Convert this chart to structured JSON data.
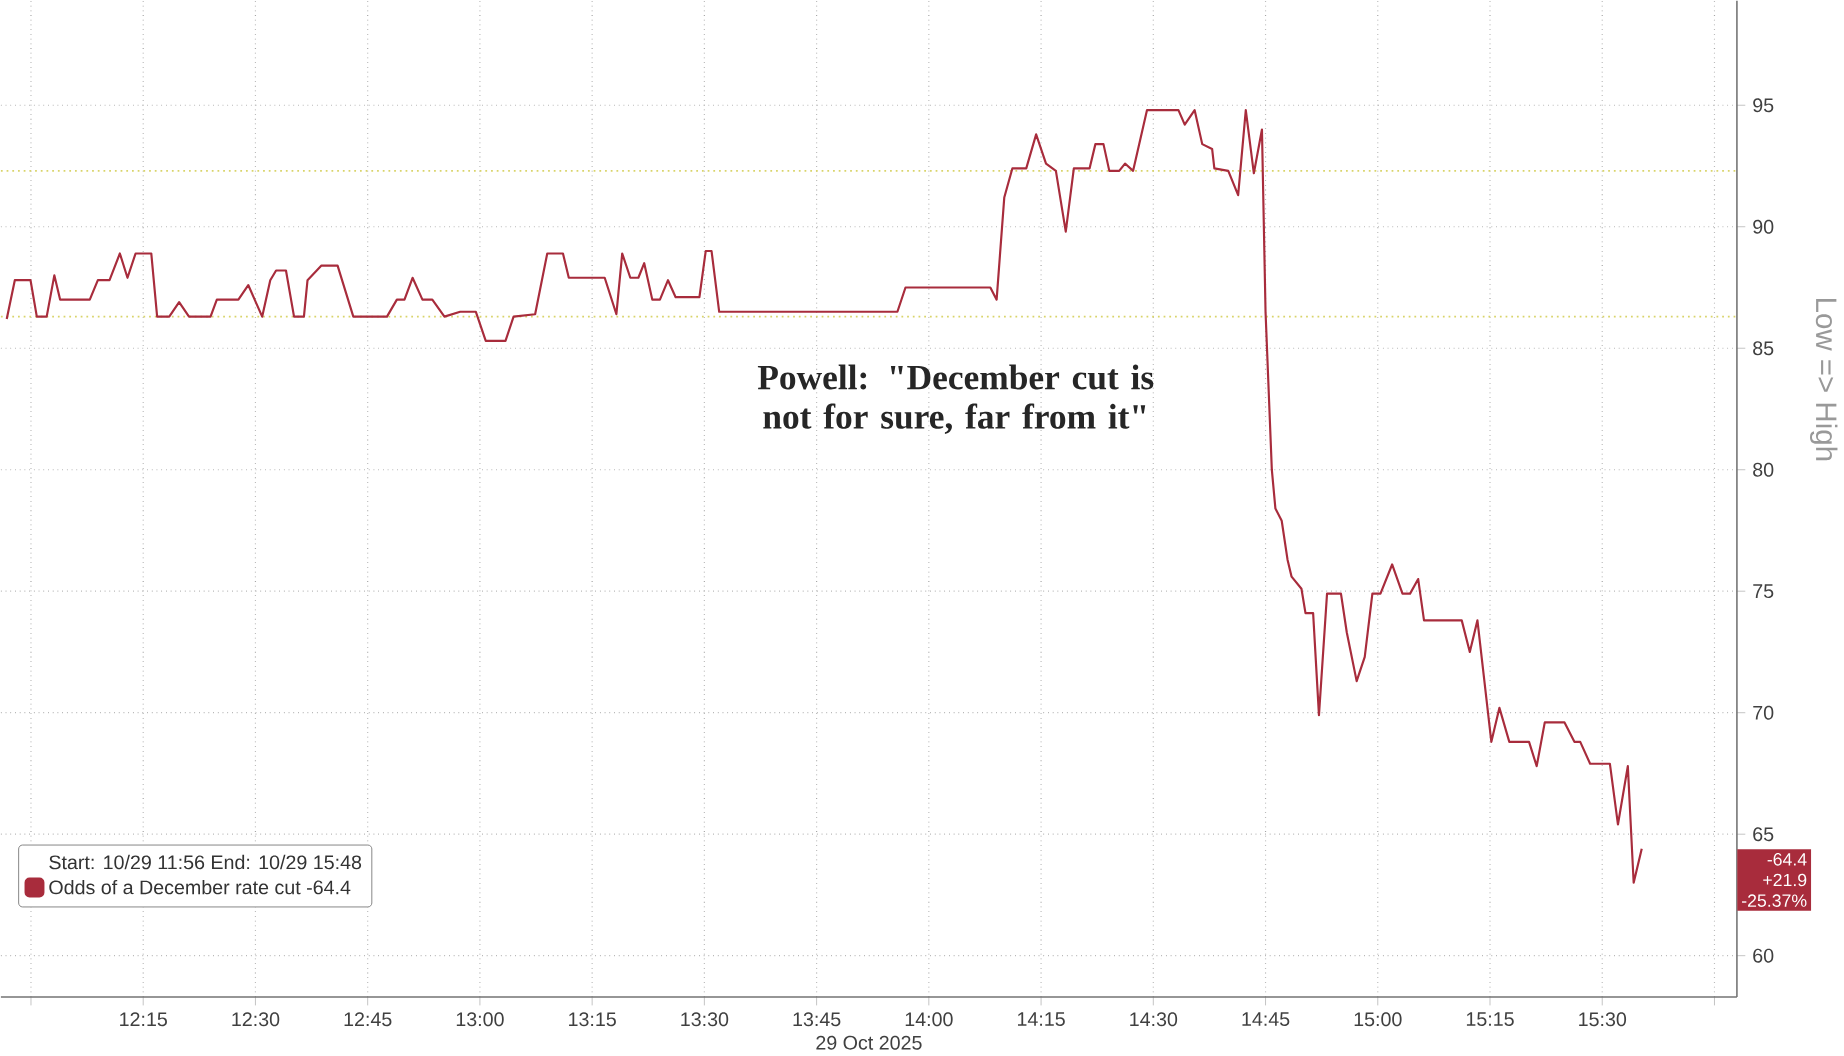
{
  "chart_data": {
    "type": "line",
    "xlabel": "29 Oct 2025",
    "ylabel": "Low => High",
    "legend_title": "Start: 10/29 11:56 End: 10/29 15:48",
    "legend": "bottom left",
    "grid": true,
    "line_style": "solid",
    "annotations": [
      "Powell: \"December cut is not for sure, far from it\"",
      "-64.4",
      "+21.9",
      "-25.37%"
    ],
    "xlim": [
      11.933,
      15.8
    ],
    "xticks": [
      {
        "value": 12.0,
        "label": null
      },
      {
        "value": 12.25,
        "label": "12:15"
      },
      {
        "value": 12.5,
        "label": "12:30"
      },
      {
        "value": 12.75,
        "label": "12:45"
      },
      {
        "value": 13.0,
        "label": "13:00"
      },
      {
        "value": 13.25,
        "label": "13:15"
      },
      {
        "value": 13.5,
        "label": "13:30"
      },
      {
        "value": 13.75,
        "label": "13:45"
      },
      {
        "value": 14.0,
        "label": "14:00"
      },
      {
        "value": 14.25,
        "label": "14:15"
      },
      {
        "value": 14.5,
        "label": "14:30"
      },
      {
        "value": 14.75,
        "label": "14:45"
      },
      {
        "value": 15.0,
        "label": "15:00"
      },
      {
        "value": 15.25,
        "label": "15:15"
      },
      {
        "value": 15.5,
        "label": "15:30"
      },
      {
        "value": 15.75,
        "label": null
      }
    ],
    "ylim": [
      58.3,
      99.3
    ],
    "yticks": [
      60,
      65,
      70,
      75,
      80,
      85,
      90,
      95
    ],
    "ref_lines": [
      {
        "axis": "y",
        "value": 86.3,
        "color": "#d9d46a",
        "line_style": "dotted"
      },
      {
        "axis": "y",
        "value": 92.3,
        "color": "#d9d46a",
        "line_style": "dotted"
      }
    ],
    "series": [
      {
        "name": "Odds of a December rate cut -64.4",
        "color": "#a82c3c",
        "x": [
          11.946,
          11.964,
          11.999,
          12.013,
          12.035,
          12.052,
          12.065,
          12.131,
          12.149,
          12.175,
          12.198,
          12.215,
          12.233,
          12.268,
          12.281,
          12.308,
          12.33,
          12.352,
          12.4,
          12.414,
          12.462,
          12.484,
          12.515,
          12.533,
          12.546,
          12.568,
          12.586,
          12.608,
          12.616,
          12.647,
          12.683,
          12.718,
          12.793,
          12.815,
          12.832,
          12.85,
          12.872,
          12.894,
          12.921,
          12.956,
          12.991,
          13.013,
          13.057,
          13.075,
          13.123,
          13.15,
          13.185,
          13.198,
          13.278,
          13.304,
          13.317,
          13.335,
          13.353,
          13.366,
          13.384,
          13.401,
          13.419,
          13.436,
          13.489,
          13.503,
          13.516,
          13.533,
          13.93,
          13.948,
          14.137,
          14.151,
          14.168,
          14.186,
          14.217,
          14.239,
          14.261,
          14.283,
          14.305,
          14.323,
          14.358,
          14.371,
          14.389,
          14.402,
          14.424,
          14.437,
          14.455,
          14.486,
          14.556,
          14.57,
          14.592,
          14.609,
          14.631,
          14.636,
          14.667,
          14.689,
          14.706,
          14.724,
          14.742,
          14.75,
          14.764,
          14.772,
          14.786,
          14.799,
          14.808,
          14.83,
          14.839,
          14.856,
          14.869,
          14.887,
          14.918,
          14.931,
          14.953,
          14.971,
          14.988,
          15.006,
          15.032,
          15.055,
          15.072,
          15.09,
          15.103,
          15.187,
          15.205,
          15.222,
          15.253,
          15.271,
          15.293,
          15.337,
          15.354,
          15.372,
          15.416,
          15.438,
          15.451,
          15.473,
          15.517,
          15.535,
          15.557,
          15.57,
          15.588
        ],
        "values": [
          86.2,
          87.8,
          87.8,
          86.3,
          86.3,
          88.0,
          87.0,
          87.0,
          87.8,
          87.8,
          88.9,
          87.9,
          88.9,
          88.9,
          86.3,
          86.3,
          86.9,
          86.3,
          86.3,
          87.0,
          87.0,
          87.6,
          86.3,
          87.8,
          88.2,
          88.2,
          86.3,
          86.3,
          87.8,
          88.4,
          88.4,
          86.3,
          86.3,
          87.0,
          87.0,
          87.9,
          87.0,
          87.0,
          86.3,
          86.5,
          86.5,
          85.3,
          85.3,
          86.3,
          86.4,
          88.9,
          88.9,
          87.9,
          87.9,
          86.4,
          88.9,
          87.9,
          87.9,
          88.5,
          87.0,
          87.0,
          87.8,
          87.1,
          87.1,
          89.0,
          89.0,
          86.5,
          86.5,
          87.5,
          87.5,
          87.0,
          91.2,
          92.4,
          92.4,
          93.8,
          92.6,
          92.3,
          89.8,
          92.4,
          92.4,
          93.4,
          93.4,
          92.3,
          92.3,
          92.6,
          92.3,
          94.8,
          94.8,
          94.2,
          94.8,
          93.4,
          93.2,
          92.4,
          92.3,
          91.3,
          94.8,
          92.2,
          94.0,
          86.5,
          80.0,
          78.4,
          77.9,
          76.3,
          75.6,
          75.1,
          74.1,
          74.1,
          69.9,
          74.9,
          74.9,
          73.3,
          71.3,
          72.3,
          74.9,
          74.9,
          76.1,
          74.9,
          74.9,
          75.5,
          73.8,
          73.8,
          72.5,
          73.8,
          68.8,
          70.2,
          68.8,
          68.8,
          67.8,
          69.6,
          69.6,
          68.8,
          68.8,
          67.9,
          67.9,
          65.4,
          67.8,
          63.0,
          64.4
        ]
      }
    ]
  }
}
